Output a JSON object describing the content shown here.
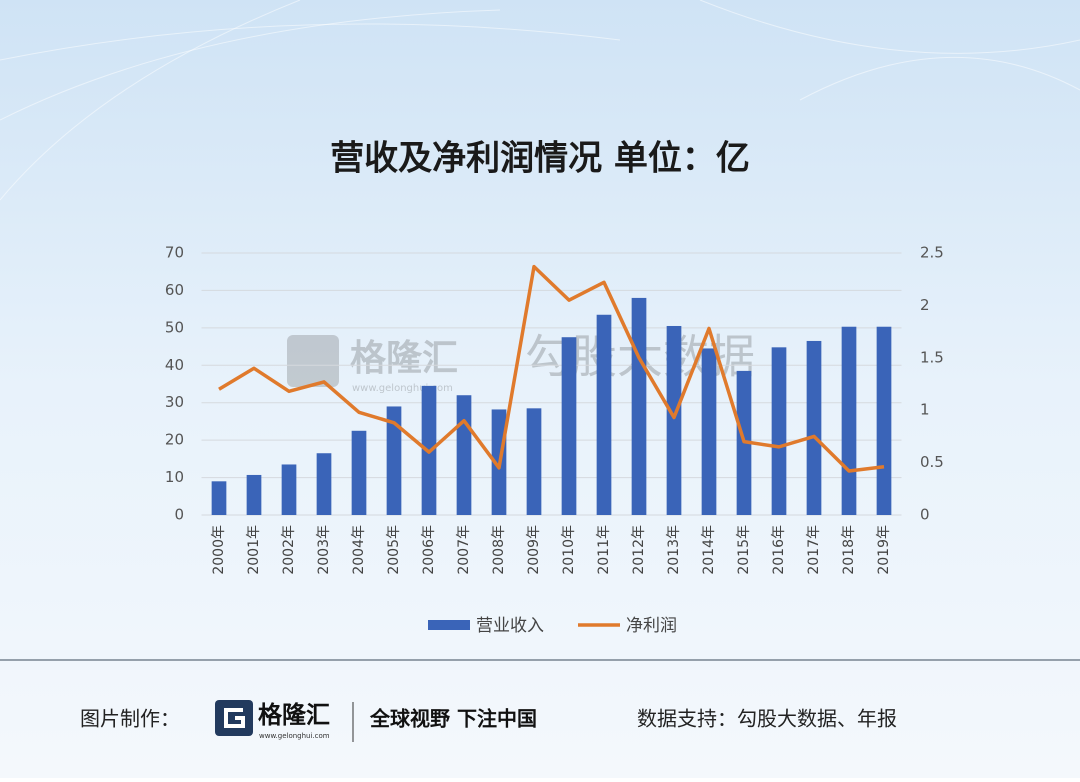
{
  "chart_data": {
    "type": "bar_line",
    "title": "营收及净利润情况 单位：亿",
    "categories": [
      "2000年",
      "2001年",
      "2002年",
      "2003年",
      "2004年",
      "2005年",
      "2006年",
      "2007年",
      "2008年",
      "2009年",
      "2010年",
      "2011年",
      "2012年",
      "2013年",
      "2014年",
      "2015年",
      "2016年",
      "2017年",
      "2018年",
      "2019年"
    ],
    "series": [
      {
        "name": "营业收入",
        "type": "bar",
        "color": "#3a64b8",
        "values": [
          9,
          10.7,
          13.5,
          16.5,
          22.5,
          29,
          34.5,
          32,
          28.2,
          28.5,
          47.5,
          53.5,
          58,
          50.5,
          44.5,
          38.5,
          44.8,
          46.5,
          50.3,
          50.3
        ]
      },
      {
        "name": "净利润",
        "type": "line",
        "axis": "y2",
        "color": "#e07a2c",
        "values": [
          1.2,
          1.4,
          1.18,
          1.27,
          0.98,
          0.88,
          0.6,
          0.9,
          0.45,
          2.37,
          2.05,
          2.22,
          1.5,
          0.93,
          1.78,
          0.7,
          0.65,
          0.75,
          0.42,
          0.46
        ]
      }
    ],
    "ylim": [
      0,
      70
    ],
    "yticks": [
      0,
      10,
      20,
      30,
      40,
      50,
      60,
      70
    ],
    "y2lim": [
      0,
      2.5
    ],
    "y2ticks": [
      0,
      0.5,
      1,
      1.5,
      2,
      2.5
    ],
    "grid": true,
    "legend": "bottom"
  },
  "watermark": {
    "brand": "格隆汇",
    "url": "www.gelonghui.com",
    "source": "勾股大数据"
  },
  "footer": {
    "made_by": "图片制作：",
    "brand": "格隆汇",
    "url": "www.gelonghui.com",
    "slogan": "全球视野 下注中国",
    "data_source": "数据支持：勾股大数据、年报"
  }
}
